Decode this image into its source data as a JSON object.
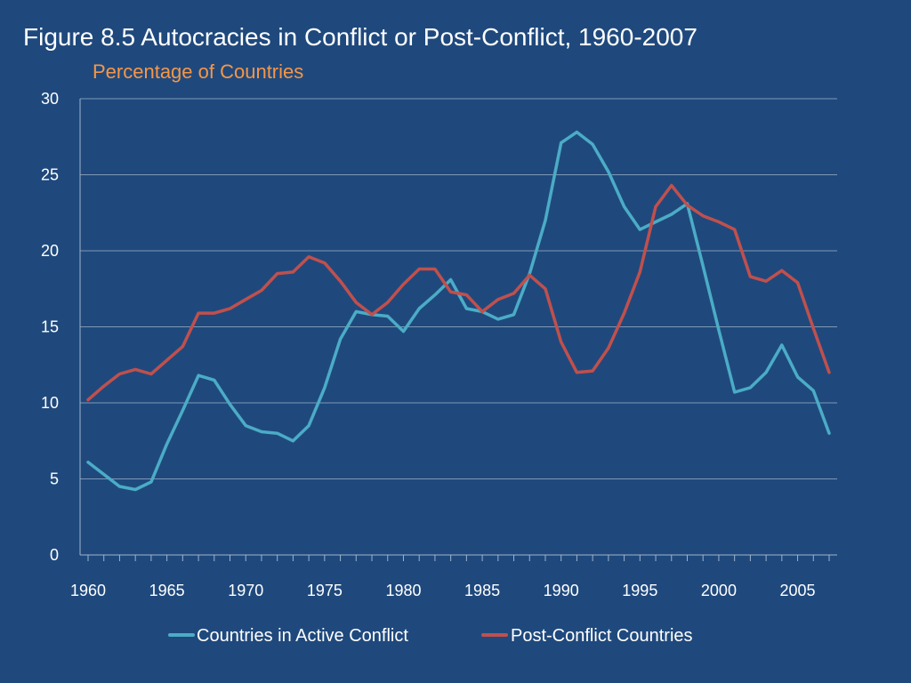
{
  "slide": {
    "title": "Figure 8.5 Autocracies in Conflict or Post-Conflict, 1960-2007",
    "subtitle": "Percentage of Countries"
  },
  "colors": {
    "background": "#1f497d",
    "grid": "#7f97b5",
    "axis": "#9fb3cc",
    "subtitle": "#f79646"
  },
  "chart_data": {
    "type": "line",
    "title": "Figure 8.5 Autocracies in Conflict or Post-Conflict, 1960-2007",
    "subtitle": "Percentage of Countries",
    "xlabel": "",
    "ylabel": "",
    "xlim": [
      1960,
      2007
    ],
    "ylim": [
      0,
      30
    ],
    "x_ticks": [
      1960,
      1965,
      1970,
      1975,
      1980,
      1985,
      1990,
      1995,
      2000,
      2005
    ],
    "y_ticks": [
      0,
      5,
      10,
      15,
      20,
      25,
      30
    ],
    "grid": "horizontal",
    "legend": "bottom",
    "x": [
      1960,
      1961,
      1962,
      1963,
      1964,
      1965,
      1966,
      1967,
      1968,
      1969,
      1970,
      1971,
      1972,
      1973,
      1974,
      1975,
      1976,
      1977,
      1978,
      1979,
      1980,
      1981,
      1982,
      1983,
      1984,
      1985,
      1986,
      1987,
      1988,
      1989,
      1990,
      1991,
      1992,
      1993,
      1994,
      1995,
      1996,
      1997,
      1998,
      1999,
      2000,
      2001,
      2002,
      2003,
      2004,
      2005,
      2006,
      2007
    ],
    "series": [
      {
        "name": "Countries in Active Conflict",
        "color": "#4bacc6",
        "values": [
          6.1,
          5.3,
          4.5,
          4.3,
          4.8,
          7.3,
          9.5,
          11.8,
          11.5,
          9.9,
          8.5,
          8.1,
          8.0,
          7.5,
          8.5,
          11.0,
          14.2,
          16.0,
          15.8,
          15.7,
          14.7,
          16.2,
          17.1,
          18.1,
          16.2,
          16.0,
          15.5,
          15.8,
          18.5,
          22.0,
          27.1,
          27.8,
          27.0,
          25.2,
          22.9,
          21.4,
          21.9,
          22.4,
          23.1,
          19.0,
          14.8,
          10.7,
          11.0,
          12.0,
          13.8,
          11.7,
          10.8,
          8.0
        ]
      },
      {
        "name": "Post-Conflict Countries",
        "color": "#c0504d",
        "values": [
          10.2,
          11.1,
          11.9,
          12.2,
          11.9,
          12.8,
          13.7,
          15.9,
          15.9,
          16.2,
          16.8,
          17.4,
          18.5,
          18.6,
          19.6,
          19.2,
          18.0,
          16.6,
          15.8,
          16.6,
          17.8,
          18.8,
          18.8,
          17.3,
          17.1,
          16.0,
          16.8,
          17.2,
          18.4,
          17.5,
          14.0,
          12.0,
          12.1,
          13.6,
          15.9,
          18.6,
          22.9,
          24.3,
          23.0,
          22.3,
          21.9,
          21.4,
          18.3,
          18.0,
          18.7,
          17.9,
          14.9,
          12.0
        ]
      }
    ]
  }
}
